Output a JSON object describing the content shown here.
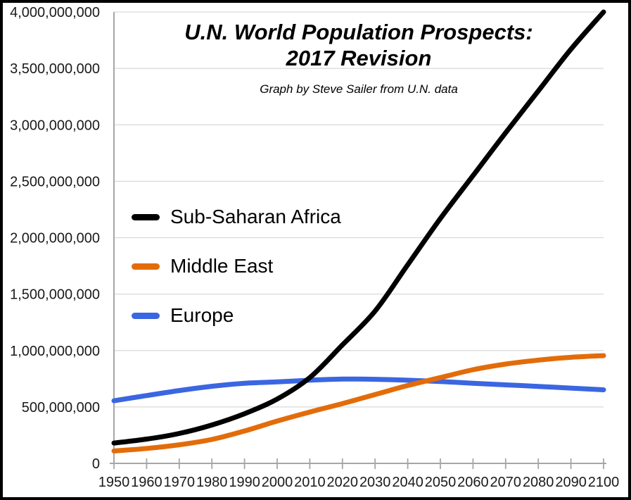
{
  "page": {
    "background": "#FFFFFF",
    "border_color": "#000000"
  },
  "title": {
    "line1": "U.N. World Population Prospects:",
    "line2": "2017 Revision",
    "subtitle": "Graph by Steve Sailer from U.N. data"
  },
  "legend": [
    {
      "label": "Sub-Saharan Africa",
      "color": "#000000"
    },
    {
      "label": "Middle East",
      "color": "#E36C0A"
    },
    {
      "label": "Europe",
      "color": "#3B66E2"
    }
  ],
  "chart_data": {
    "type": "line",
    "x": [
      1950,
      1960,
      1970,
      1980,
      1990,
      2000,
      2010,
      2020,
      2030,
      2040,
      2050,
      2060,
      2070,
      2080,
      2090,
      2100
    ],
    "series": [
      {
        "name": "Sub-Saharan Africa",
        "color": "#000000",
        "values": [
          180000000,
          215000000,
          265000000,
          340000000,
          440000000,
          570000000,
          760000000,
          1050000000,
          1350000000,
          1760000000,
          2170000000,
          2550000000,
          2930000000,
          3300000000,
          3670000000,
          4000000000
        ]
      },
      {
        "name": "Middle East",
        "color": "#E36C0A",
        "values": [
          110000000,
          132000000,
          165000000,
          212000000,
          287000000,
          375000000,
          455000000,
          530000000,
          610000000,
          690000000,
          760000000,
          830000000,
          880000000,
          915000000,
          940000000,
          955000000
        ]
      },
      {
        "name": "Europe",
        "color": "#3B66E2",
        "values": [
          555000000,
          601000000,
          645000000,
          683000000,
          710000000,
          722000000,
          737000000,
          747000000,
          745000000,
          737000000,
          725000000,
          710000000,
          696000000,
          682000000,
          667000000,
          652000000
        ]
      }
    ],
    "xlim": [
      1950,
      2100
    ],
    "ylim": [
      0,
      4000000000
    ],
    "ytick_step": 500000000,
    "ytick_labels": [
      "0",
      "500,000,000",
      "1,000,000,000",
      "1,500,000,000",
      "2,000,000,000",
      "2,500,000,000",
      "3,000,000,000",
      "3,500,000,000",
      "4,000,000,000"
    ],
    "xtick_labels": [
      "1950",
      "1960",
      "1970",
      "1980",
      "1990",
      "2000",
      "2010",
      "2020",
      "2030",
      "2040",
      "2050",
      "2060",
      "2070",
      "2080",
      "2090",
      "2100"
    ],
    "grid": true,
    "legend_position": "inside-left",
    "gridline_color": "#D9D9D9",
    "axis_color": "#A6A6A6",
    "tick_label_color": "#1A1A1A",
    "title": "U.N. World Population Prospects: 2017 Revision",
    "xlabel": "",
    "ylabel": ""
  }
}
